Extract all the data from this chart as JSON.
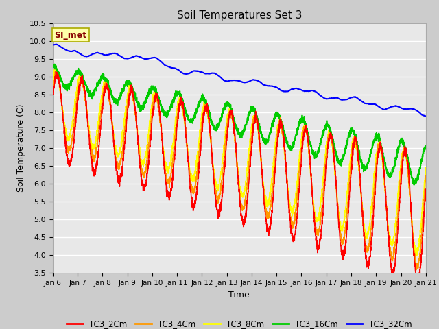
{
  "title": "Soil Temperatures Set 3",
  "xlabel": "Time",
  "ylabel": "Soil Temperature (C)",
  "ylim": [
    3.5,
    10.5
  ],
  "yticks": [
    3.5,
    4.0,
    4.5,
    5.0,
    5.5,
    6.0,
    6.5,
    7.0,
    7.5,
    8.0,
    8.5,
    9.0,
    9.5,
    10.0,
    10.5
  ],
  "xtick_labels": [
    "Jan 6",
    "Jan 7",
    "Jan 8",
    "Jan 9",
    "Jan 10",
    "Jan 11",
    "Jan 12",
    "Jan 13",
    "Jan 14",
    "Jan 15",
    "Jan 16",
    "Jan 17",
    "Jan 18",
    "Jan 19",
    "Jan 20",
    "Jan 21"
  ],
  "legend_labels": [
    "TC3_2Cm",
    "TC3_4Cm",
    "TC3_8Cm",
    "TC3_16Cm",
    "TC3_32Cm"
  ],
  "legend_colors": [
    "#ff0000",
    "#ff9900",
    "#ffff00",
    "#00cc00",
    "#0000ff"
  ],
  "annotation_text": "SI_met",
  "annotation_bg": "#ffffaa",
  "annotation_border": "#aaaa00",
  "n_points": 3600,
  "days": 15
}
